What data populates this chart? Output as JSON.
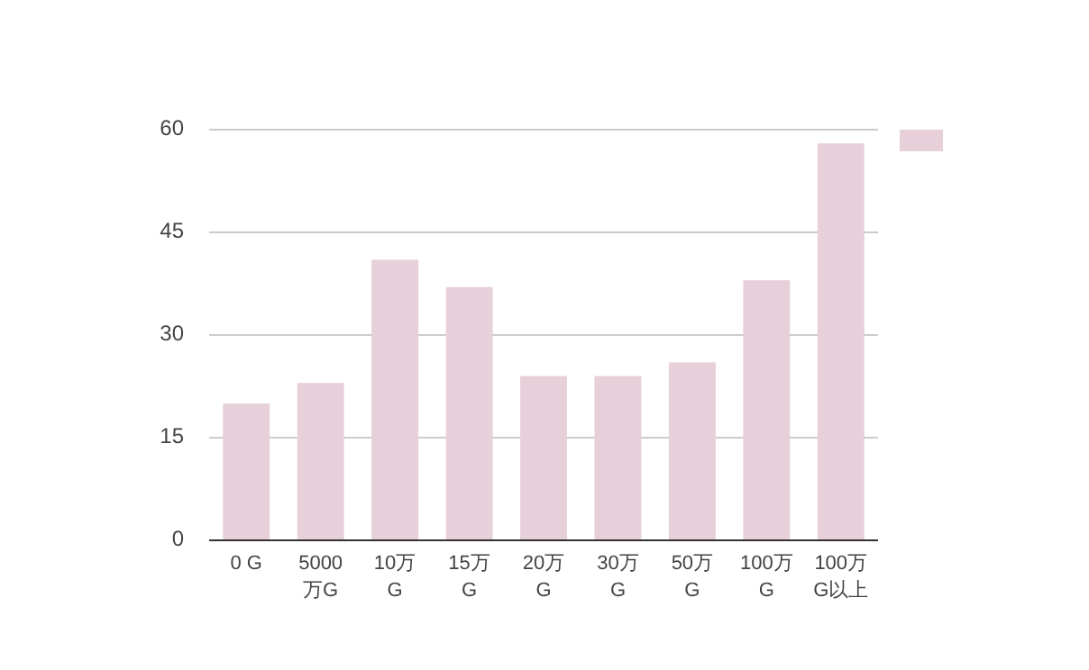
{
  "chart_data": {
    "type": "bar",
    "categories": [
      "0 G",
      "5000万G",
      "10万 G",
      "15万 G",
      "20万 G",
      "30万 G",
      "50万 G",
      "100万G",
      "100万G以上"
    ],
    "series": [
      {
        "color": "#e8d0da",
        "values": [
          20,
          23,
          41,
          37,
          24,
          24,
          26,
          38,
          58
        ]
      }
    ],
    "ylim": [
      0,
      60
    ],
    "yticks": [
      0,
      15,
      30,
      45,
      60
    ],
    "grid": "y"
  }
}
